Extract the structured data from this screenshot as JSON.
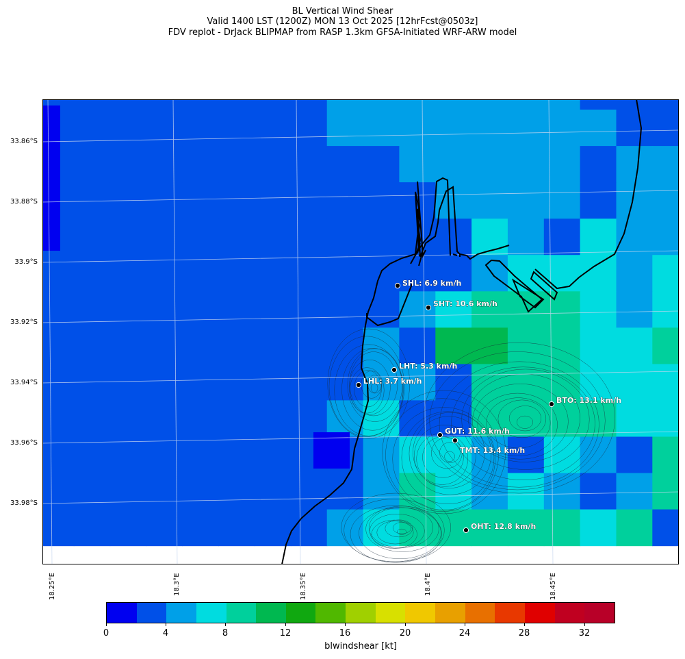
{
  "title_lines": [
    "BL Vertical Wind Shear",
    "Valid 1400 LST (1200Z) MON 13 Oct 2025 [12hrFcst@0503z]",
    "FDV replot - DrJack BLIPMAP from RASP 1.3km GFSA-Initiated WRF-ARW model"
  ],
  "y_ticks": [
    "33.86°S",
    "33.88°S",
    "33.9°S",
    "33.92°S",
    "33.94°S",
    "33.96°S",
    "33.98°S"
  ],
  "x_ticks": [
    "18.25°E",
    "18.3°E",
    "18.35°E",
    "18.4°E",
    "18.45°E"
  ],
  "stations": [
    {
      "label": "SHL: 6.9 km/h"
    },
    {
      "label": "SHT: 10.6 km/h"
    },
    {
      "label": "LHT: 5.3 km/h"
    },
    {
      "label": "LHL: 3.7 km/h"
    },
    {
      "label": "BTO: 13.1 km/h"
    },
    {
      "label": "GUT: 11.6 km/h"
    },
    {
      "label": "TMT: 13.4 km/h"
    },
    {
      "label": "OHT: 12.8 km/h"
    }
  ],
  "colorbar": {
    "label": "blwindshear [kt]",
    "tick_labels": [
      "0",
      "4",
      "8",
      "12",
      "16",
      "20",
      "24",
      "28",
      "32"
    ],
    "colors": [
      "#0000f0",
      "#0050e8",
      "#00a0e8",
      "#00dce0",
      "#00d09c",
      "#00b850",
      "#10a810",
      "#50b800",
      "#a0d000",
      "#d8e000",
      "#f0c800",
      "#e8a000",
      "#e87000",
      "#e83800",
      "#e00000",
      "#c00020",
      "#b80028"
    ]
  },
  "colors": {
    "coast": "#000000",
    "grid": "#c8d8f0",
    "contour": "#1a2a3a"
  }
}
